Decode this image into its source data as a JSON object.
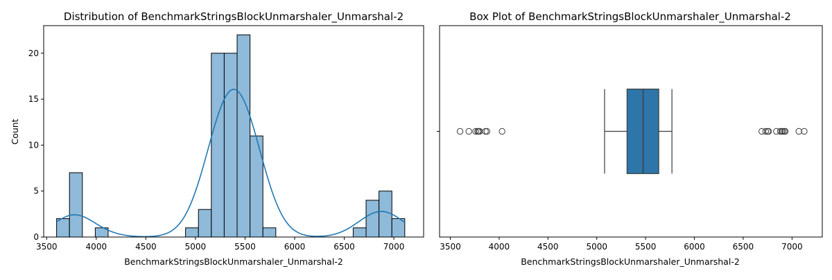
{
  "chart_data": [
    {
      "type": "histogram",
      "title": "Distribution of BenchmarkStringsBlockUnmarshaler_Unmarshal-2",
      "xlabel": "BenchmarkStringsBlockUnmarshaler_Unmarshal-2",
      "ylabel": "Count",
      "xlim": [
        3470,
        7300
      ],
      "ylim": [
        0,
        23
      ],
      "xticks": [
        3500,
        4000,
        4500,
        5000,
        5500,
        6000,
        6500,
        7000
      ],
      "yticks": [
        0,
        5,
        10,
        15,
        20
      ],
      "bin_start": 3600,
      "bin_width": 130,
      "counts": [
        2,
        7,
        0,
        1,
        0,
        0,
        0,
        0,
        0,
        0,
        1,
        3,
        20,
        20,
        22,
        11,
        1,
        0,
        0,
        0,
        0,
        0,
        0,
        1,
        4,
        5,
        2
      ],
      "kde_line": true,
      "colors": {
        "bar": "#8fbad9",
        "bar_edge": "#000000",
        "kde": "#1f77b4"
      }
    },
    {
      "type": "box",
      "title": "Box Plot of BenchmarkStringsBlockUnmarshaler_Unmarshal-2",
      "xlabel": "BenchmarkStringsBlockUnmarshaler_Unmarshal-2",
      "xlim": [
        3390,
        7310
      ],
      "xticks": [
        3500,
        4000,
        4500,
        5000,
        5500,
        6000,
        6500,
        7000
      ],
      "q1": 5310,
      "median": 5475,
      "q3": 5635,
      "whisker_low": 5080,
      "whisker_high": 5770,
      "outliers": [
        3600,
        3690,
        3760,
        3780,
        3790,
        3800,
        3860,
        3875,
        4030,
        6690,
        6730,
        6750,
        6760,
        6840,
        6880,
        6895,
        6905,
        6920,
        6930,
        7070,
        7125
      ],
      "colors": {
        "box": "#2e75aa",
        "line": "#3d3d3d"
      }
    }
  ]
}
